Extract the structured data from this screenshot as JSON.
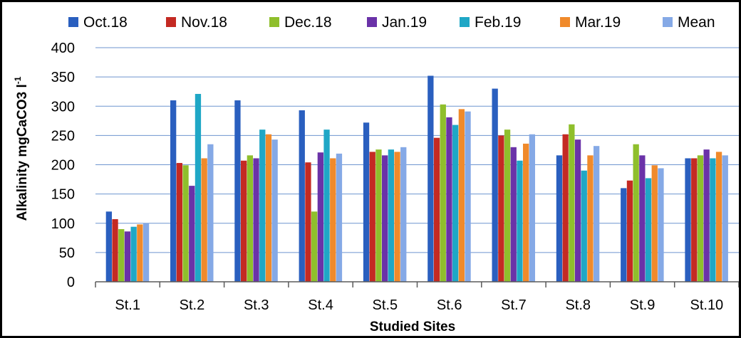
{
  "chart_data": {
    "type": "bar",
    "xlabel": "Studied Sites",
    "ylabel": "Alkalinity mgCaCO3 l",
    "ylabel_superscript": "-1",
    "ylim": [
      0,
      400
    ],
    "yticks": [
      0,
      50,
      100,
      150,
      200,
      250,
      300,
      350,
      400
    ],
    "grid": true,
    "legend_position": "top",
    "categories": [
      "St.1",
      "St.2",
      "St.3",
      "St.4",
      "St.5",
      "St.6",
      "St.7",
      "St.8",
      "St.9",
      "St.10"
    ],
    "series": [
      {
        "name": "Oct.18",
        "color": "#2a5fbf",
        "values": [
          120,
          310,
          310,
          293,
          272,
          352,
          330,
          216,
          160,
          211
        ]
      },
      {
        "name": "Nov.18",
        "color": "#c42a23",
        "values": [
          107,
          203,
          207,
          204,
          222,
          246,
          250,
          252,
          173,
          211
        ]
      },
      {
        "name": "Dec.18",
        "color": "#8fbf2c",
        "values": [
          90,
          199,
          216,
          120,
          226,
          303,
          260,
          269,
          235,
          216
        ]
      },
      {
        "name": "Jan.19",
        "color": "#6a32a8",
        "values": [
          86,
          164,
          211,
          221,
          216,
          281,
          230,
          243,
          216,
          226
        ]
      },
      {
        "name": "Feb.19",
        "color": "#1fa7c6",
        "values": [
          94,
          321,
          260,
          260,
          226,
          268,
          207,
          190,
          177,
          211
        ]
      },
      {
        "name": "Mar.19",
        "color": "#f08a2b",
        "values": [
          98,
          211,
          252,
          211,
          222,
          295,
          236,
          216,
          199,
          222
        ]
      },
      {
        "name": "Mean",
        "color": "#85a9e6",
        "values": [
          100,
          235,
          243,
          219,
          230,
          291,
          252,
          232,
          194,
          216
        ]
      }
    ]
  }
}
